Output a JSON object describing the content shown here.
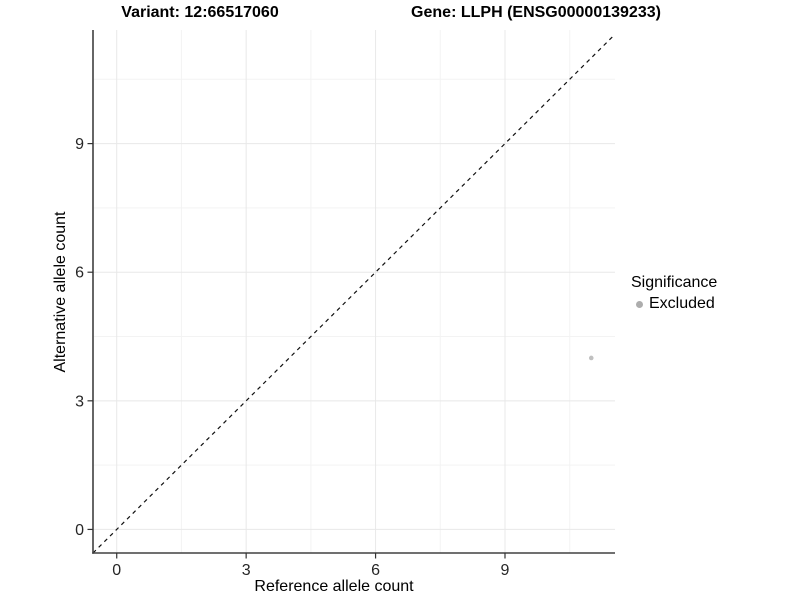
{
  "titles": {
    "variant": "Variant: 12:66517060",
    "gene": "Gene: LLPH (ENSG00000139233)"
  },
  "chart_data": {
    "type": "scatter",
    "title": "",
    "xlabel": "Reference allele count",
    "ylabel": "Alternative allele count",
    "x_ticks": [
      0,
      3,
      6,
      9
    ],
    "y_ticks": [
      0,
      3,
      6,
      9
    ],
    "x_minor_ticks": [
      1.5,
      4.5,
      7.5,
      10.5
    ],
    "y_minor_ticks": [
      1.5,
      4.5,
      7.5,
      10.5
    ],
    "xlim": [
      -0.55,
      11.55
    ],
    "ylim": [
      -0.55,
      11.65
    ],
    "grid": true,
    "points": [
      {
        "x": 11,
        "y": 4,
        "series": "Excluded"
      }
    ],
    "identity_line": {
      "type": "y=x",
      "style": "dashed"
    },
    "legend": {
      "position": "right",
      "title": "Significance",
      "items": [
        {
          "label": "Excluded",
          "color": "#b8b8b8"
        }
      ]
    }
  },
  "colors": {
    "background": "#ffffff",
    "point": "#c0c0c0",
    "legend_dot": "#adadad",
    "axis_line": "#404040",
    "tick_mark": "#333333",
    "tick_label": "#262626",
    "grid_major": "#e8e8e8",
    "grid_minor": "#f3f3f3",
    "identity_line": "#111111"
  }
}
